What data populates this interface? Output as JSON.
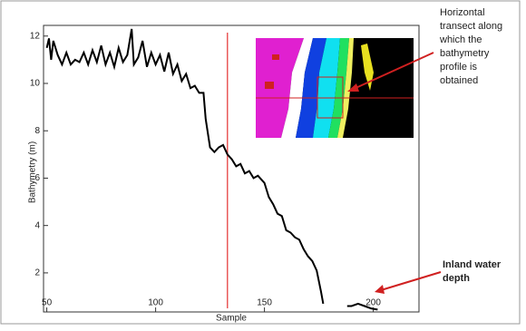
{
  "chart_data": {
    "type": "line",
    "x_label": "Sample",
    "y_label": "Bathymetry (m)",
    "x": [
      50,
      51,
      52,
      53,
      55,
      57,
      59,
      61,
      63,
      65,
      67,
      69,
      71,
      73,
      75,
      77,
      79,
      81,
      83,
      85,
      87,
      89,
      90,
      92,
      94,
      96,
      98,
      100,
      102,
      104,
      106,
      108,
      110,
      112,
      114,
      116,
      118,
      120,
      122,
      123,
      125,
      127,
      129,
      131,
      133,
      135,
      137,
      139,
      141,
      143,
      145,
      147,
      149,
      150,
      152,
      154,
      156,
      158,
      160,
      162,
      164,
      166,
      168,
      170,
      172,
      174,
      176,
      177,
      183,
      188,
      190,
      193,
      196,
      199,
      202
    ],
    "values": [
      11.5,
      11.9,
      11.0,
      11.8,
      11.2,
      10.8,
      11.3,
      10.8,
      11.0,
      10.9,
      11.3,
      10.8,
      11.4,
      10.9,
      11.6,
      10.8,
      11.3,
      10.7,
      11.5,
      10.9,
      11.2,
      12.3,
      10.8,
      11.1,
      11.8,
      10.7,
      11.3,
      10.8,
      11.2,
      10.5,
      11.3,
      10.4,
      10.8,
      10.1,
      10.4,
      9.8,
      9.9,
      9.6,
      9.6,
      8.5,
      7.3,
      7.1,
      7.3,
      7.4,
      7.0,
      6.8,
      6.5,
      6.6,
      6.2,
      6.3,
      6.0,
      6.1,
      5.9,
      5.8,
      5.2,
      4.9,
      4.5,
      4.4,
      3.8,
      3.7,
      3.5,
      3.4,
      3.0,
      2.7,
      2.5,
      2.1,
      1.2,
      0.7,
      null,
      0.6,
      0.6,
      0.7,
      0.6,
      0.5,
      0.45
    ],
    "color": "#000000",
    "xlim": [
      48.5,
      221
    ],
    "ylim": [
      0.35,
      12.45
    ],
    "xticks": [
      50,
      100,
      150,
      200
    ],
    "yticks": [
      2,
      4,
      6,
      8,
      10,
      12
    ],
    "vline_x": 133,
    "vline_color": "#e53030",
    "annotations": [
      {
        "lines": [
          "Horizontal",
          "transect along",
          "which the",
          "bathymetry",
          "profile is",
          "obtained"
        ]
      },
      {
        "lines": [
          "Inland water",
          "depth"
        ]
      }
    ]
  }
}
